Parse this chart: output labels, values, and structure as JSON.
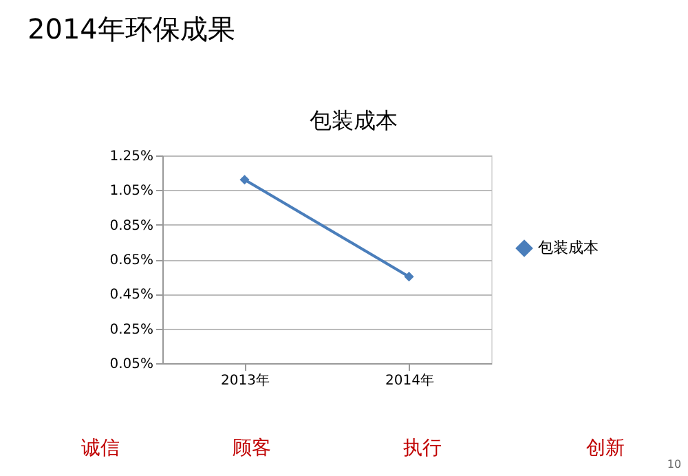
{
  "chart_data": {
    "type": "line",
    "title": "2014年环保成果",
    "subtitle": "包装成本",
    "categories": [
      "2013年",
      "2014年"
    ],
    "series": [
      {
        "name": "包装成本",
        "color": "#4a7ebb",
        "values": [
          1.11,
          0.55
        ]
      }
    ],
    "ylim": [
      0.05,
      1.25
    ],
    "yticks": [
      {
        "value": 0.05,
        "label": "0.05%"
      },
      {
        "value": 0.25,
        "label": "0.25%"
      },
      {
        "value": 0.45,
        "label": "0.45%"
      },
      {
        "value": 0.65,
        "label": "0.65%"
      },
      {
        "value": 0.85,
        "label": "0.85%"
      },
      {
        "value": 1.05,
        "label": "1.05%"
      },
      {
        "value": 1.25,
        "label": "1.25%"
      }
    ],
    "grid": "y",
    "legend": "right",
    "marker": "diamond",
    "line_style": "solid",
    "annotations": [
      "诚信",
      "顾客",
      "执行",
      "创新",
      "10"
    ]
  }
}
